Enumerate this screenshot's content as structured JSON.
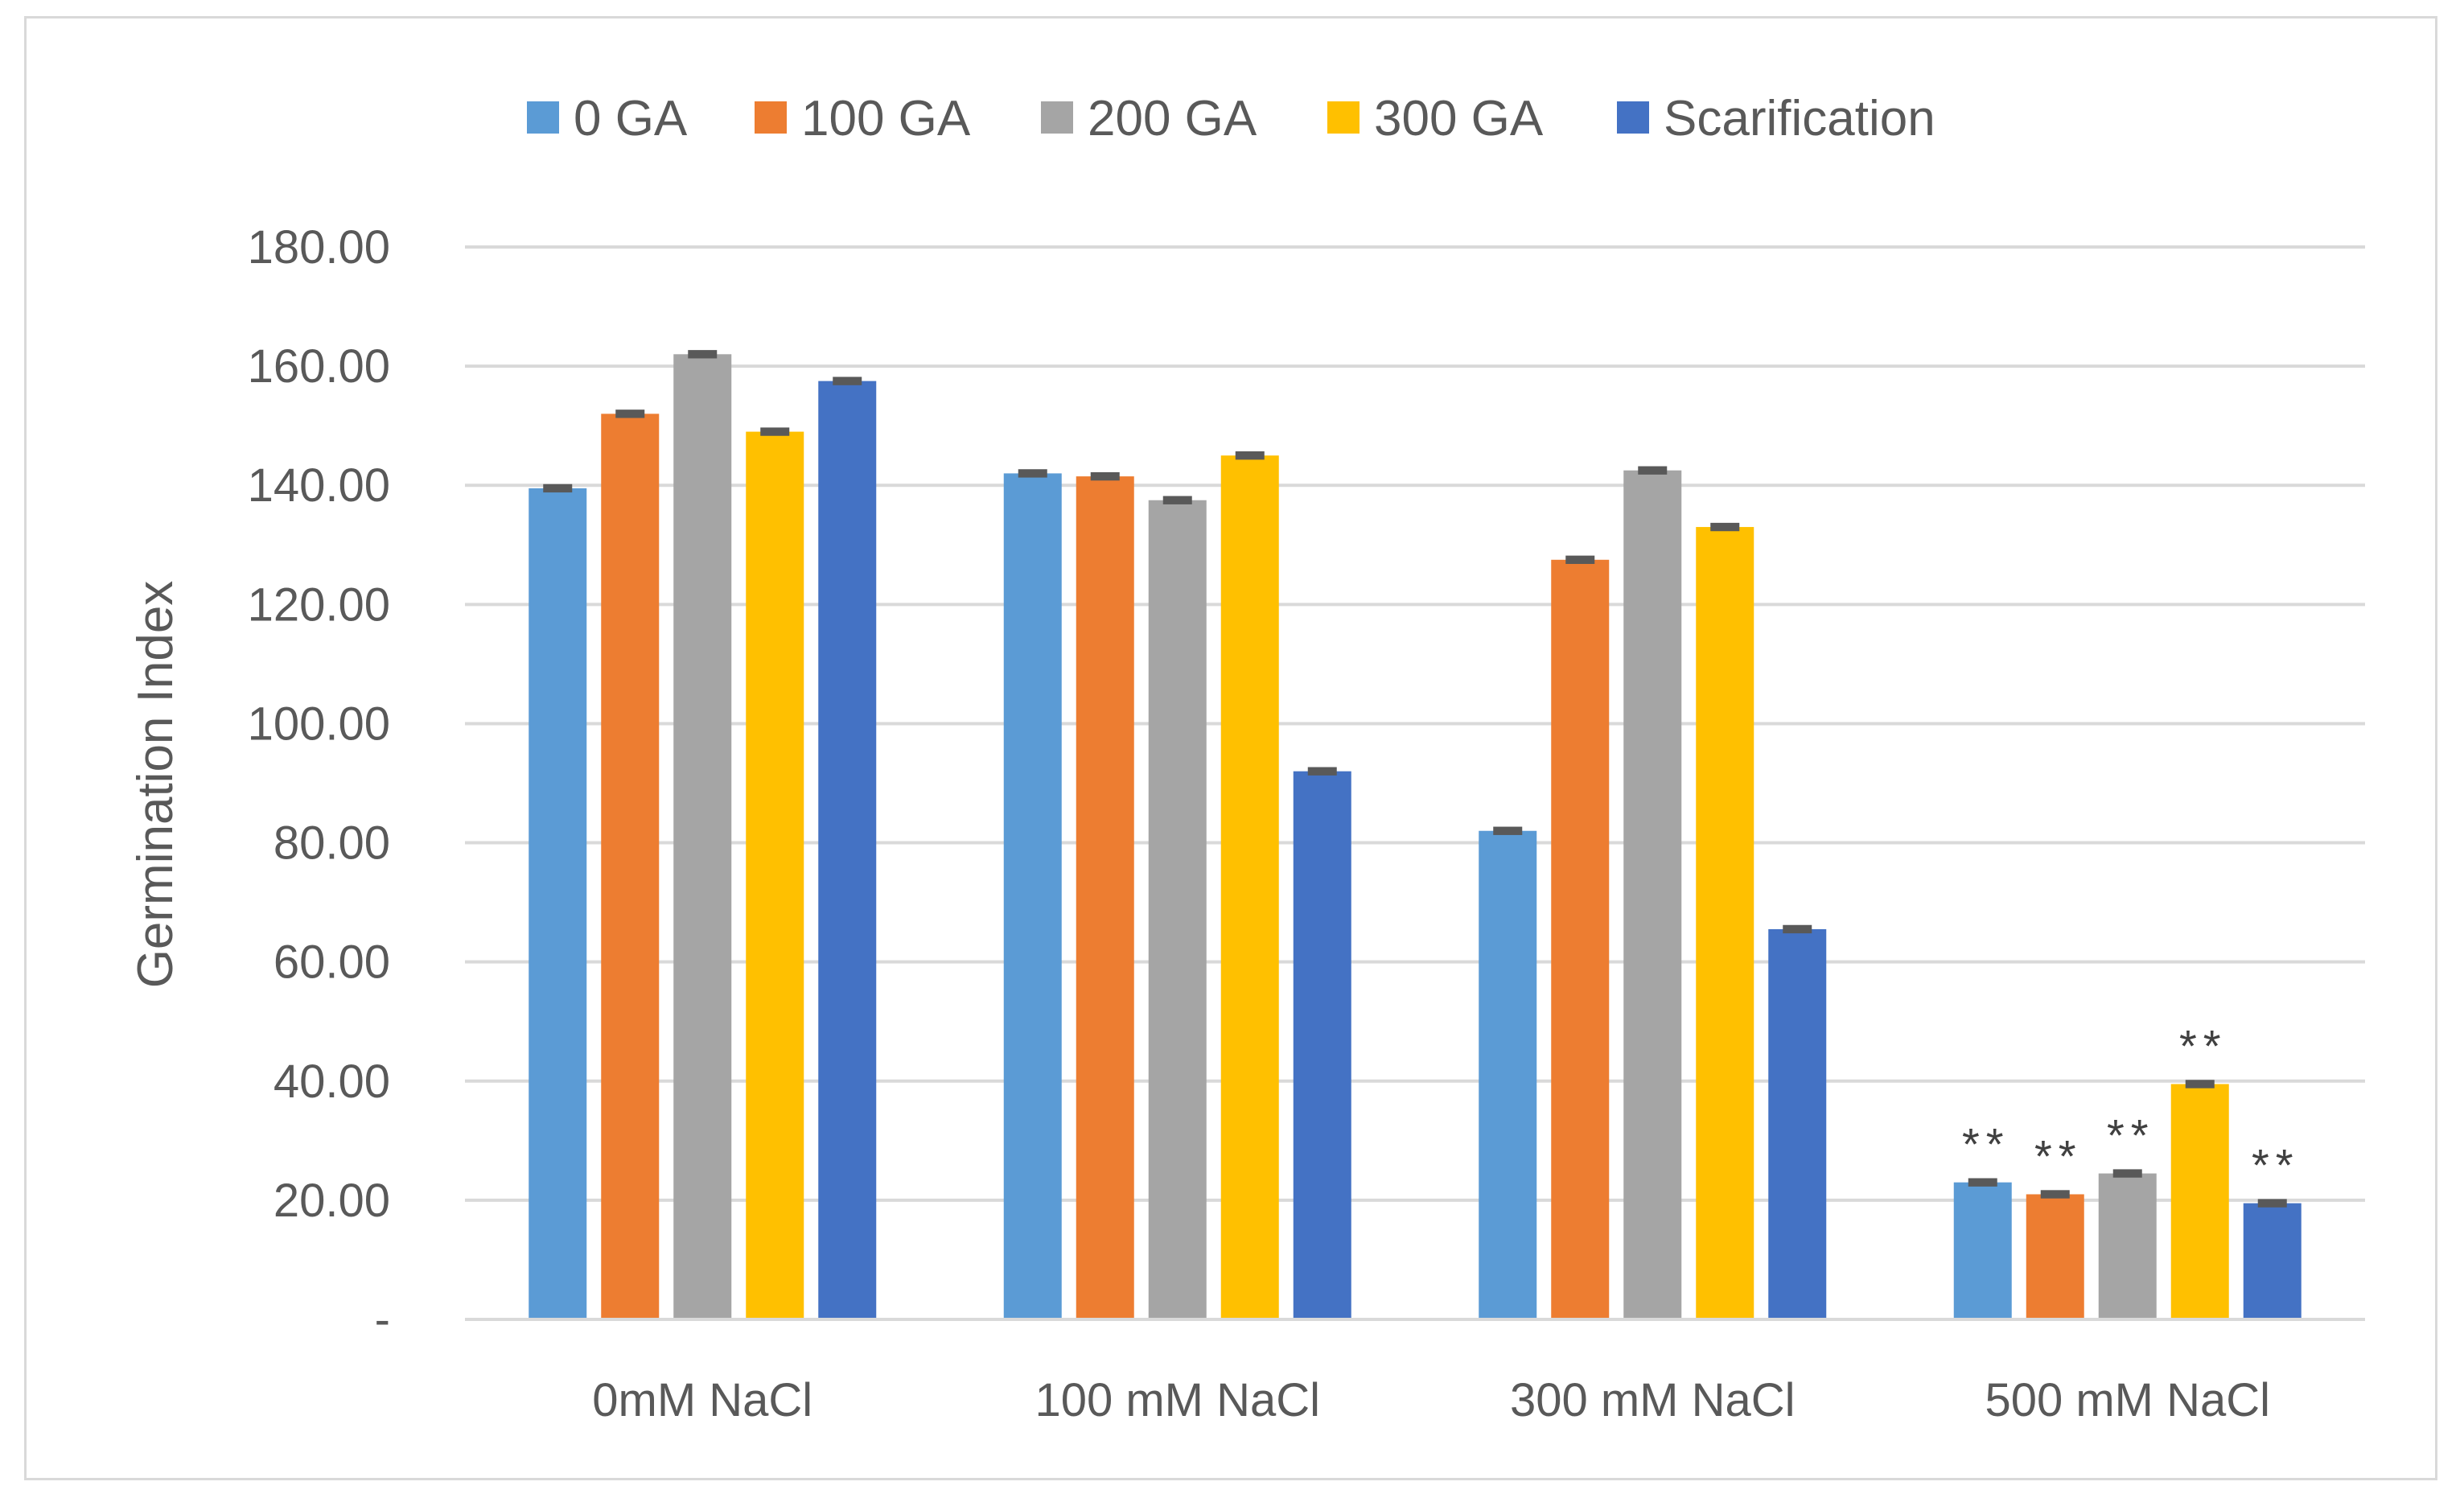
{
  "chart_data": {
    "type": "bar",
    "title": "",
    "xlabel": "",
    "ylabel": "Germination Index",
    "ylim": [
      0,
      180
    ],
    "yticks": [
      0,
      20,
      40,
      60,
      80,
      100,
      120,
      140,
      160,
      180
    ],
    "ytick_labels": [
      "-",
      "20.00",
      "40.00",
      "60.00",
      "80.00",
      "100.00",
      "120.00",
      "140.00",
      "160.00",
      "180.00"
    ],
    "grid": true,
    "legend_position": "top",
    "categories": [
      "0mM NaCl",
      "100 mM NaCl",
      "300 mM NaCl",
      "500 mM NaCl"
    ],
    "series": [
      {
        "name": "0 GA",
        "color": "#5B9BD5",
        "values": [
          139.5,
          142.0,
          82.0,
          23.0
        ],
        "errors": [
          0.7,
          0.7,
          0.7,
          0.7
        ]
      },
      {
        "name": "100 GA",
        "color": "#ED7D31",
        "values": [
          152.0,
          141.5,
          127.5,
          21.0
        ],
        "errors": [
          0.7,
          0.7,
          0.7,
          0.7
        ]
      },
      {
        "name": "200 GA",
        "color": "#A5A5A5",
        "values": [
          162.0,
          137.5,
          142.5,
          24.5
        ],
        "errors": [
          0.7,
          0.7,
          0.7,
          0.7
        ]
      },
      {
        "name": "300 GA",
        "color": "#FFC000",
        "values": [
          149.0,
          145.0,
          133.0,
          39.5
        ],
        "errors": [
          0.7,
          0.7,
          0.7,
          0.7
        ]
      },
      {
        "name": "Scarification",
        "color": "#4472C4",
        "values": [
          157.5,
          92.0,
          65.5,
          19.5
        ],
        "errors": [
          0.7,
          0.7,
          0.7,
          0.7
        ]
      }
    ],
    "annotations": [
      {
        "category_index": 3,
        "series_index": 0,
        "text": "**"
      },
      {
        "category_index": 3,
        "series_index": 1,
        "text": "**"
      },
      {
        "category_index": 3,
        "series_index": 2,
        "text": "**"
      },
      {
        "category_index": 3,
        "series_index": 3,
        "text": "**"
      },
      {
        "category_index": 3,
        "series_index": 4,
        "text": "**"
      }
    ]
  }
}
